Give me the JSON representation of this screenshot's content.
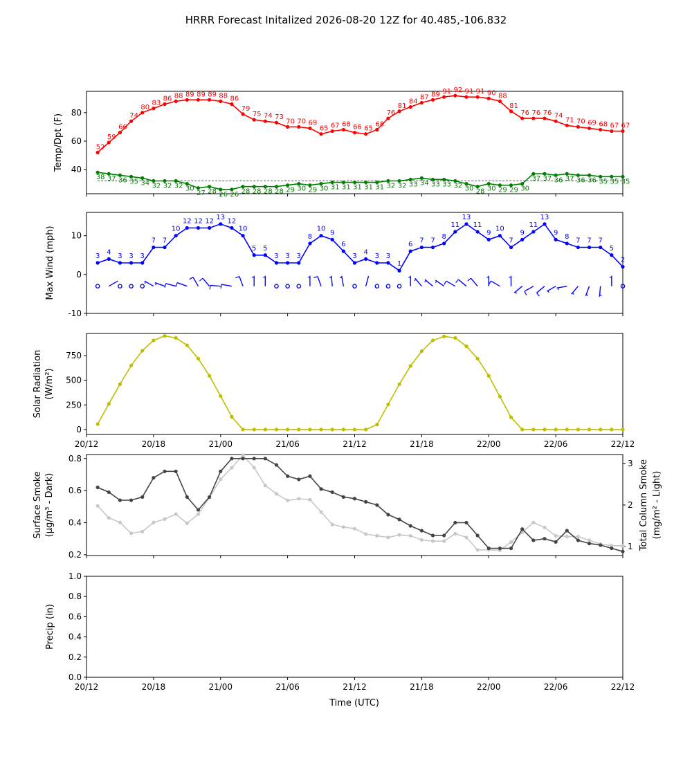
{
  "title": "HRRR Forecast Initalized 2026-08-20 12Z for 40.485,-106.832",
  "x_axis": {
    "label": "Time (UTC)",
    "tick_labels": [
      "20/12",
      "20/18",
      "21/00",
      "21/06",
      "21/12",
      "21/18",
      "22/00",
      "22/06",
      "22/12"
    ],
    "tick_hours": [
      0,
      6,
      12,
      18,
      24,
      30,
      36,
      42,
      48
    ],
    "range_hours": [
      0,
      48
    ],
    "first_data_hour": 1
  },
  "chart_data": [
    {
      "type": "line",
      "panel": "temp",
      "ylabel": "Temp/Dpt (F)",
      "ylim": [
        23,
        95
      ],
      "yticks": [
        40,
        60,
        80
      ],
      "reference_line": {
        "y": 32,
        "color": "#0000ff",
        "style": "dashed"
      },
      "series": [
        {
          "color": "#ff0000",
          "labels": true,
          "values": [
            52,
            59,
            66,
            74,
            80,
            83,
            86,
            88,
            89,
            89,
            89,
            88,
            86,
            79,
            75,
            74,
            73,
            70,
            70,
            69,
            65,
            67,
            68,
            66,
            65,
            68,
            76,
            81,
            84,
            87,
            89,
            91,
            92,
            91,
            91,
            90,
            88,
            81,
            76,
            76,
            76,
            74,
            71,
            70,
            69,
            68,
            67,
            67
          ]
        },
        {
          "color": "#008000",
          "labels": true,
          "values": [
            38,
            37,
            36,
            35,
            34,
            32,
            32,
            32,
            30,
            27,
            28,
            26,
            26,
            28,
            28,
            28,
            28,
            29,
            30,
            29,
            30,
            31,
            31,
            31,
            31,
            31,
            32,
            32,
            33,
            34,
            33,
            33,
            32,
            30,
            28,
            30,
            29,
            29,
            30,
            37,
            37,
            36,
            37,
            36,
            36,
            35,
            35,
            35
          ]
        }
      ]
    },
    {
      "type": "line",
      "panel": "wind",
      "ylabel": "Max Wind (mph)",
      "ylim": [
        -10,
        16
      ],
      "yticks": [
        -10,
        0,
        10
      ],
      "series": [
        {
          "color": "#0000ff",
          "labels": true,
          "values": [
            3,
            4,
            3,
            3,
            3,
            7,
            7,
            10,
            12,
            12,
            12,
            13,
            12,
            10,
            5,
            5,
            3,
            3,
            3,
            8,
            10,
            9,
            6,
            3,
            4,
            3,
            3,
            1,
            6,
            7,
            7,
            8,
            11,
            13,
            11,
            9,
            10,
            7,
            9,
            11,
            13,
            9,
            8,
            7,
            7,
            7,
            5,
            2
          ]
        }
      ],
      "barbs_y": -3,
      "barb_directions_deg": [
        0,
        60,
        0,
        0,
        0,
        300,
        290,
        285,
        290,
        330,
        320,
        275,
        280,
        340,
        0,
        0,
        90,
        0,
        0,
        0,
        340,
        355,
        350,
        10,
        15,
        0,
        20,
        0,
        0,
        320,
        310,
        305,
        300,
        310,
        320,
        0,
        300,
        0,
        230,
        240,
        230,
        240,
        260,
        220,
        200,
        185,
        0,
        0
      ]
    },
    {
      "type": "line",
      "panel": "solar",
      "ylabel": "Solar Radiation",
      "ylabel_units": "(W/m²)",
      "ylim": [
        -50,
        975
      ],
      "yticks": [
        0,
        250,
        500,
        750
      ],
      "series": [
        {
          "color": "#bfbf00",
          "values": [
            55,
            260,
            460,
            650,
            800,
            905,
            950,
            930,
            855,
            720,
            545,
            340,
            130,
            0,
            0,
            0,
            0,
            0,
            0,
            0,
            0,
            0,
            0,
            0,
            0,
            50,
            255,
            460,
            645,
            795,
            905,
            945,
            930,
            845,
            720,
            545,
            335,
            125,
            0,
            0,
            0,
            0,
            0,
            0,
            0,
            0,
            0,
            0
          ]
        }
      ]
    },
    {
      "type": "line",
      "panel": "smoke",
      "ylabel": "Surface Smoke",
      "ylabel_units": "(μg/m³ - Dark)",
      "ylim": [
        0.195,
        0.825
      ],
      "yticks": [
        0.2,
        0.4,
        0.6,
        0.8
      ],
      "y2label": "Total Column Smoke",
      "y2label_units": "(mg/m² - Light)",
      "y2lim": [
        0.784,
        3.215
      ],
      "y2ticks": [
        1,
        2,
        3
      ],
      "series": [
        {
          "name_source": "Dark",
          "color": "#444444",
          "axis": "left",
          "values": [
            0.62,
            0.59,
            0.54,
            0.54,
            0.56,
            0.68,
            0.72,
            0.72,
            0.56,
            0.48,
            0.56,
            0.72,
            0.8,
            0.8,
            0.8,
            0.8,
            0.76,
            0.69,
            0.67,
            0.69,
            0.61,
            0.59,
            0.56,
            0.55,
            0.53,
            0.51,
            0.45,
            0.42,
            0.38,
            0.35,
            0.32,
            0.32,
            0.4,
            0.4,
            0.32,
            0.24,
            0.24,
            0.24,
            0.36,
            0.29,
            0.3,
            0.28,
            0.35,
            0.29,
            0.27,
            0.26,
            0.24,
            0.22
          ]
        },
        {
          "name_source": "Light",
          "color": "#c8c8c8",
          "axis": "right",
          "values": [
            1.98,
            1.69,
            1.58,
            1.32,
            1.36,
            1.58,
            1.66,
            1.78,
            1.56,
            1.78,
            2.18,
            2.62,
            2.9,
            3.2,
            2.9,
            2.47,
            2.27,
            2.11,
            2.15,
            2.13,
            1.83,
            1.53,
            1.47,
            1.43,
            1.3,
            1.26,
            1.22,
            1.28,
            1.26,
            1.16,
            1.13,
            1.13,
            1.31,
            1.22,
            0.92,
            0.92,
            0.91,
            1.11,
            1.34,
            1.58,
            1.46,
            1.26,
            1.24,
            1.24,
            1.15,
            1.06,
            1.02,
            1.02
          ]
        }
      ]
    },
    {
      "type": "line",
      "panel": "precip",
      "ylabel": "Precip (in)",
      "ylim": [
        0,
        1
      ],
      "yticks": [
        0.0,
        0.2,
        0.4,
        0.6,
        0.8,
        1.0
      ],
      "series": []
    }
  ]
}
